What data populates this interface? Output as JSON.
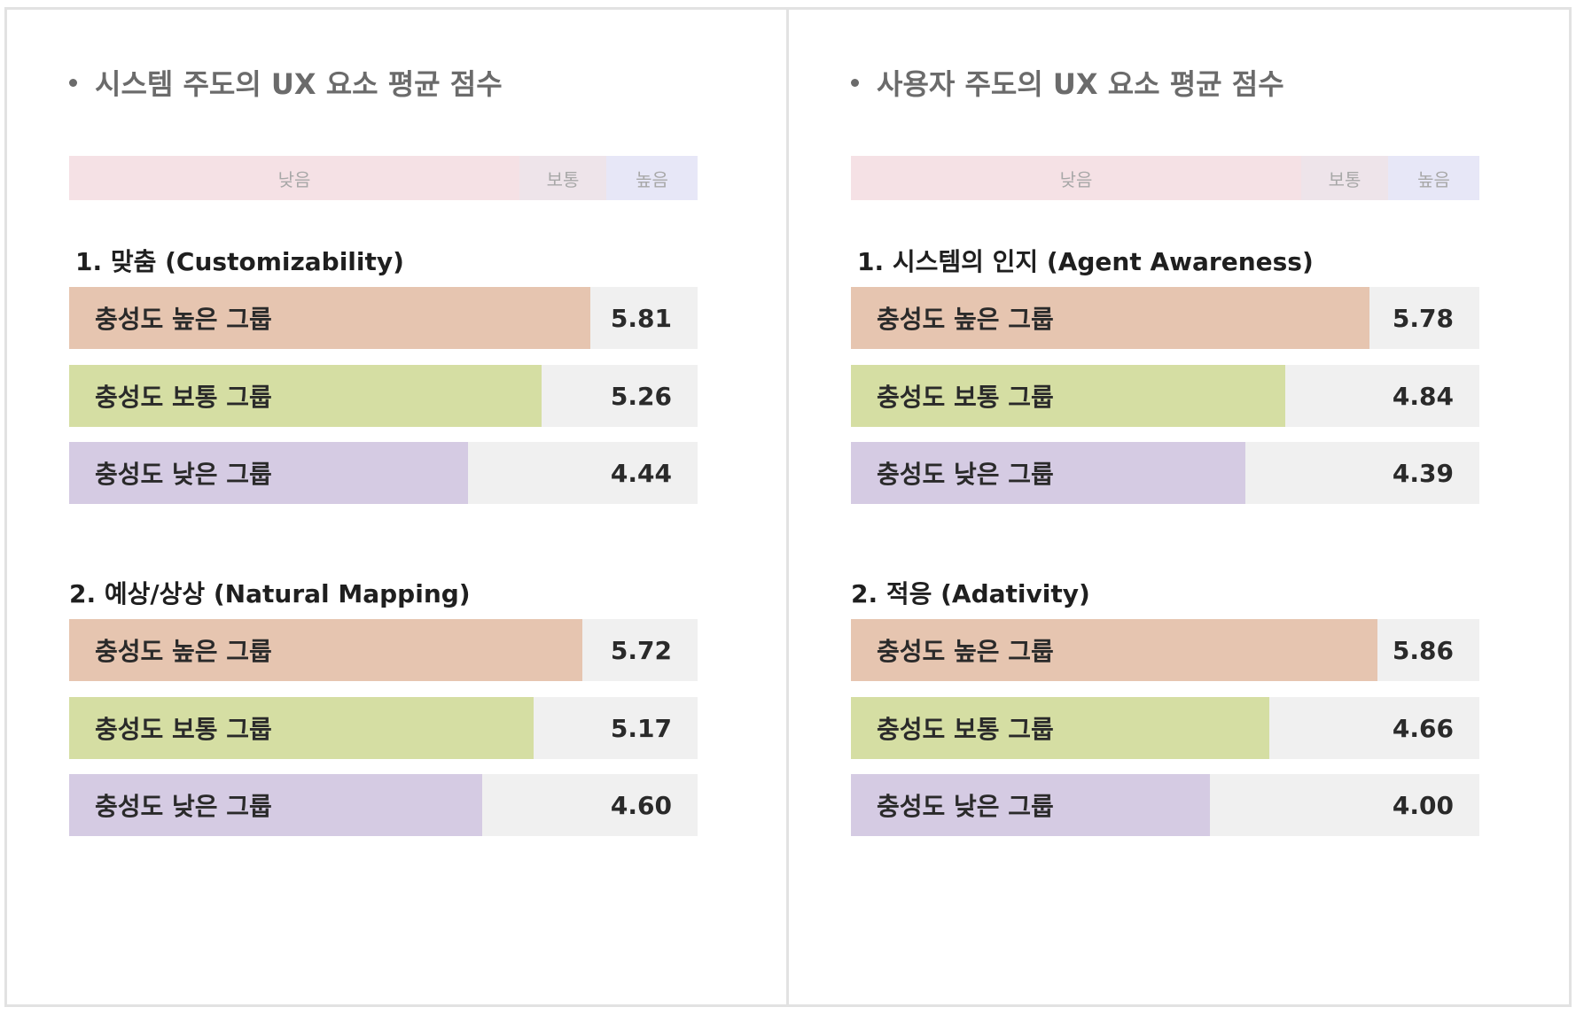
{
  "colors": {
    "high_group": "#e6c5b0",
    "mid_group": "#d5dea3",
    "low_group": "#d5cbe3",
    "track": "#f0f0f0",
    "legend_low": "#f5e1e5",
    "legend_mid": "#eee4ea",
    "legend_high": "#e7e7f7"
  },
  "legend": {
    "low": "낮음",
    "mid": "보통",
    "high": "높음"
  },
  "chart_data": [
    {
      "type": "bar",
      "title": "시스템 주도의 UX 요소 평균 점수",
      "xlim": [
        0,
        7
      ],
      "legend_scale": [
        "낮음",
        "보통",
        "높음"
      ],
      "sections": [
        {
          "title": "1. 맞춤 (Customizability)",
          "bars": [
            {
              "label": "충성도 높은 그룹",
              "value": 5.81,
              "value_text": "5.81",
              "group": "high"
            },
            {
              "label": "충성도 보통 그룹",
              "value": 5.26,
              "value_text": "5.26",
              "group": "mid"
            },
            {
              "label": "충성도 낮은 그룹",
              "value": 4.44,
              "value_text": "4.44",
              "group": "low"
            }
          ]
        },
        {
          "title": "2. 예상/상상 (Natural Mapping)",
          "bars": [
            {
              "label": "충성도 높은 그룹",
              "value": 5.72,
              "value_text": "5.72",
              "group": "high"
            },
            {
              "label": "충성도 보통 그룹",
              "value": 5.17,
              "value_text": "5.17",
              "group": "mid"
            },
            {
              "label": "충성도 낮은 그룹",
              "value": 4.6,
              "value_text": "4.60",
              "group": "low"
            }
          ]
        }
      ]
    },
    {
      "type": "bar",
      "title": "사용자 주도의 UX 요소 평균 점수",
      "xlim": [
        0,
        7
      ],
      "legend_scale": [
        "낮음",
        "보통",
        "높음"
      ],
      "sections": [
        {
          "title": "1. 시스템의 인지 (Agent Awareness)",
          "bars": [
            {
              "label": "충성도 높은 그룹",
              "value": 5.78,
              "value_text": "5.78",
              "group": "high"
            },
            {
              "label": "충성도 보통 그룹",
              "value": 4.84,
              "value_text": "4.84",
              "group": "mid"
            },
            {
              "label": "충성도 낮은 그룹",
              "value": 4.39,
              "value_text": "4.39",
              "group": "low"
            }
          ]
        },
        {
          "title": "2. 적응 (Adativity)",
          "bars": [
            {
              "label": "충성도 높은 그룹",
              "value": 5.86,
              "value_text": "5.86",
              "group": "high"
            },
            {
              "label": "충성도 보통 그룹",
              "value": 4.66,
              "value_text": "4.66",
              "group": "mid"
            },
            {
              "label": "충성도 낮은 그룹",
              "value": 4.0,
              "value_text": "4.00",
              "group": "low"
            }
          ]
        }
      ]
    }
  ]
}
